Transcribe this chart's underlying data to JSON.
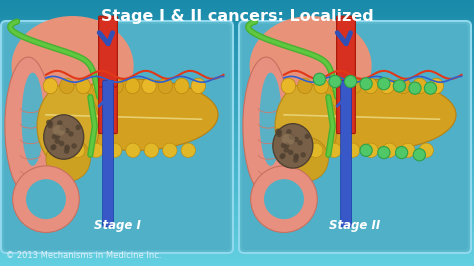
{
  "title": "Stage I & II cancers: Localized",
  "subtitle_left": "Stage I",
  "subtitle_right": "Stage II",
  "copyright": "© 2013 Mechanisms in Medicine Inc.",
  "bg_gradient_top": "#62d0e0",
  "bg_gradient_bottom": "#1a8aaa",
  "panel_bg": "#5bbece",
  "panel_border": "#8adaee",
  "title_color": "#ffffff",
  "label_color": "#ffffff",
  "copyright_color": "#e0f0f8",
  "title_fontsize": 11.5,
  "label_fontsize": 8.5,
  "copyright_fontsize": 6.0
}
